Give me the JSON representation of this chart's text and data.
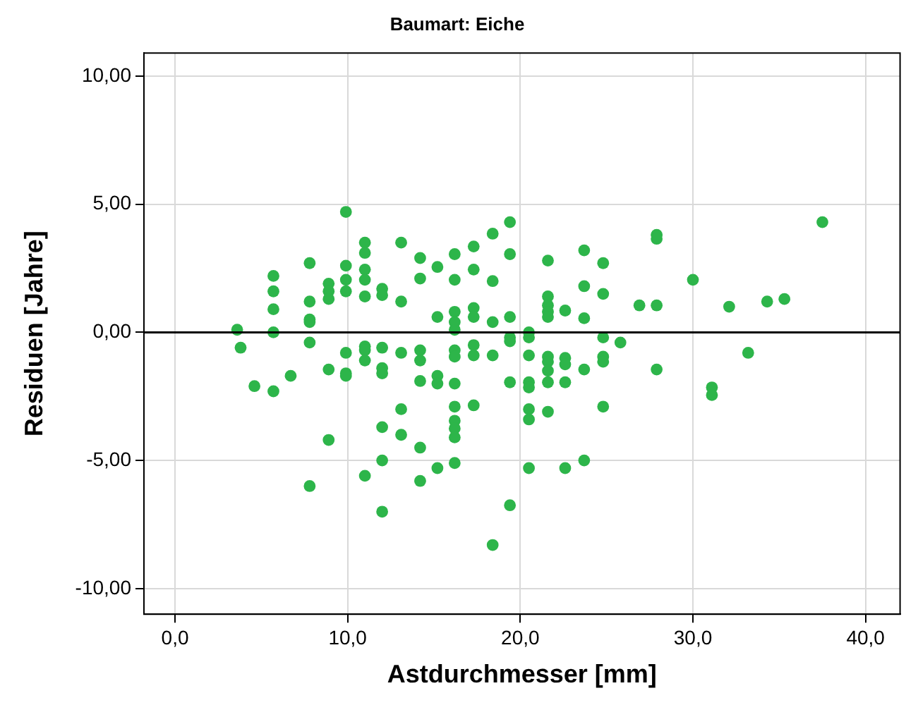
{
  "chart_data": {
    "type": "scatter",
    "title": "Baumart: Eiche",
    "xlabel": "Astdurchmesser [mm]",
    "ylabel": "Residuen [Jahre]",
    "x": [
      3.6,
      3.8,
      4.6,
      5.7,
      5.7,
      5.7,
      5.7,
      5.7,
      6.7,
      7.8,
      7.8,
      7.8,
      7.8,
      7.8,
      7.8,
      8.9,
      8.9,
      8.9,
      8.9,
      8.9,
      9.9,
      9.9,
      9.9,
      9.9,
      9.9,
      9.9,
      9.9,
      11.0,
      11.0,
      11.0,
      11.0,
      11.0,
      11.0,
      11.0,
      11.0,
      11.0,
      12.0,
      12.0,
      12.0,
      12.0,
      12.0,
      12.0,
      12.0,
      12.0,
      13.1,
      13.1,
      13.1,
      13.1,
      13.1,
      14.2,
      14.2,
      14.2,
      14.2,
      14.2,
      14.2,
      14.2,
      15.2,
      15.2,
      15.2,
      15.2,
      15.2,
      16.2,
      16.2,
      16.2,
      16.2,
      16.2,
      16.2,
      16.2,
      16.2,
      16.2,
      16.2,
      16.2,
      16.2,
      16.2,
      17.3,
      17.3,
      17.3,
      17.3,
      17.3,
      17.3,
      17.3,
      18.4,
      18.4,
      18.4,
      18.4,
      18.4,
      19.4,
      19.4,
      19.4,
      19.4,
      19.4,
      19.4,
      19.4,
      20.5,
      20.5,
      20.5,
      20.5,
      20.5,
      20.5,
      20.5,
      20.5,
      21.6,
      21.6,
      21.6,
      21.6,
      21.6,
      21.6,
      21.6,
      21.6,
      21.6,
      21.6,
      22.6,
      22.6,
      22.6,
      22.6,
      22.6,
      23.7,
      23.7,
      23.7,
      23.7,
      23.7,
      24.8,
      24.8,
      24.8,
      24.8,
      24.8,
      24.8,
      25.8,
      26.9,
      27.9,
      27.9,
      27.9,
      27.9,
      30.0,
      31.1,
      31.1,
      32.1,
      33.2,
      34.3,
      35.3,
      37.5
    ],
    "values": [
      0.1,
      -0.6,
      -2.1,
      2.2,
      1.6,
      0.9,
      0.0,
      -2.3,
      -1.7,
      2.7,
      1.2,
      0.5,
      0.4,
      -0.4,
      -6.0,
      1.9,
      1.6,
      1.3,
      -1.45,
      -4.2,
      4.7,
      2.6,
      2.05,
      1.6,
      -0.8,
      -1.6,
      -1.7,
      3.5,
      3.1,
      2.45,
      2.05,
      1.4,
      -0.55,
      -0.7,
      -1.1,
      -5.6,
      1.7,
      1.45,
      -0.6,
      -1.4,
      -1.6,
      -3.7,
      -5.0,
      -7.0,
      3.5,
      1.2,
      -0.8,
      -3.0,
      -4.0,
      2.9,
      2.1,
      -0.7,
      -1.1,
      -1.9,
      -4.5,
      -5.8,
      2.55,
      0.6,
      -1.7,
      -2.0,
      -5.3,
      3.05,
      2.05,
      0.8,
      0.4,
      0.1,
      -0.7,
      -0.95,
      -2.0,
      -2.9,
      -3.45,
      -3.75,
      -4.1,
      -5.1,
      3.35,
      2.45,
      0.95,
      0.6,
      -0.5,
      -0.9,
      -2.85,
      3.85,
      2.0,
      0.4,
      -0.9,
      -8.3,
      4.3,
      3.05,
      0.6,
      -0.2,
      -0.35,
      -1.95,
      -6.75,
      0.0,
      -0.2,
      -0.9,
      -1.95,
      -2.15,
      -3.0,
      -3.4,
      -5.3,
      2.8,
      1.4,
      1.05,
      0.8,
      0.6,
      -0.95,
      -1.15,
      -1.5,
      -1.95,
      -3.1,
      0.85,
      -1.0,
      -1.25,
      -1.95,
      -5.3,
      3.2,
      1.8,
      0.55,
      -1.45,
      -5.0,
      2.7,
      1.5,
      -0.2,
      -0.95,
      -1.15,
      -2.9,
      -0.4,
      1.05,
      3.8,
      3.65,
      1.05,
      -1.45,
      2.05,
      -2.15,
      -2.45,
      1.0,
      -0.8,
      1.2,
      1.3,
      4.3
    ],
    "color": "#2db54a",
    "marker": "circle",
    "xlim": [
      -1.8,
      42.0
    ],
    "xticks": [
      {
        "value": 0,
        "label": "0,0"
      },
      {
        "value": 10,
        "label": "10,0"
      },
      {
        "value": 20,
        "label": "20,0"
      },
      {
        "value": 30,
        "label": "30,0"
      },
      {
        "value": 40,
        "label": "40,0"
      }
    ],
    "ylim": [
      -11.0,
      10.9
    ],
    "yticks": [
      {
        "value": -10,
        "label": "-10,00"
      },
      {
        "value": -5,
        "label": "-5,00"
      },
      {
        "value": 0,
        "label": "0,00"
      },
      {
        "value": 5,
        "label": "5,00"
      },
      {
        "value": 10,
        "label": "10,00"
      }
    ],
    "grid": true,
    "ref_lines": [
      {
        "axis": "y",
        "value": 0,
        "color": "#000000"
      }
    ]
  }
}
